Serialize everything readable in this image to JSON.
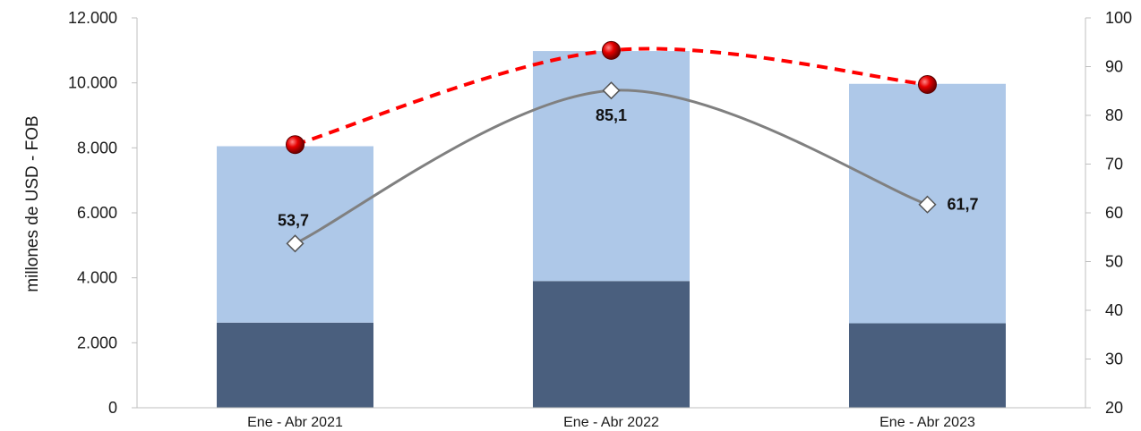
{
  "chart_data": {
    "type": "bar",
    "categories": [
      "Ene - Abr 2021",
      "Ene - Abr 2022",
      "Ene - Abr 2023"
    ],
    "ylabel": "millones de USD  - FOB",
    "ylim": [
      0,
      12000
    ],
    "y2lim": [
      20,
      100
    ],
    "yticks": [
      "0",
      "2.000",
      "4.000",
      "6.000",
      "8.000",
      "10.000",
      "12.000"
    ],
    "y2ticks": [
      "20",
      "30",
      "40",
      "50",
      "60",
      "70",
      "80",
      "90",
      "100"
    ],
    "grid": false,
    "series": [
      {
        "type": "bar",
        "axis": "left",
        "stacked": true,
        "color": "#4a5f7e",
        "values": [
          2620,
          3900,
          2600
        ]
      },
      {
        "type": "bar",
        "axis": "left",
        "stacked": true,
        "color": "#aec8e8",
        "values": [
          5430,
          7080,
          7370
        ]
      },
      {
        "type": "line",
        "axis": "left",
        "style": "dashed",
        "smooth": false,
        "color": "#ff0000",
        "marker": "red-sphere",
        "values": [
          8100,
          11000,
          9950
        ]
      },
      {
        "type": "line",
        "axis": "right",
        "style": "solid",
        "smooth": true,
        "color": "#808080",
        "marker": "white-diamond",
        "values": [
          53.7,
          85.1,
          61.7
        ],
        "labels": [
          "53,7",
          "85,1",
          "61,7"
        ]
      }
    ]
  }
}
